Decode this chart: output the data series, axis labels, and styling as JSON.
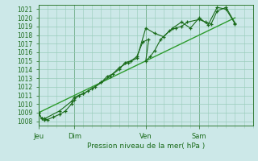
{
  "title": "Pression niveau de la mer( hPa )",
  "ylim": [
    1007.5,
    1021.5
  ],
  "yticks": [
    1008,
    1009,
    1010,
    1011,
    1012,
    1013,
    1014,
    1015,
    1016,
    1017,
    1018,
    1019,
    1020,
    1021
  ],
  "xtick_labels": [
    "Jeu",
    "Dim",
    "Ven",
    "Sam"
  ],
  "xtick_positions": [
    0,
    24,
    72,
    108
  ],
  "xlim": [
    0,
    144
  ],
  "bg_color": "#cce8e8",
  "grid_color": "#99ccbb",
  "line_color": "#1a6b1a",
  "marker_color": "#1a6b1a",
  "trend_color": "#2d9b2d",
  "series1_x": [
    0,
    2,
    4,
    6,
    10,
    14,
    18,
    22,
    24,
    27,
    30,
    33,
    38,
    42,
    46,
    50,
    54,
    58,
    62,
    66,
    70,
    74,
    72,
    75,
    78,
    82,
    88,
    92,
    96,
    100,
    108,
    112,
    116,
    120,
    126,
    132
  ],
  "series1_y": [
    1009.0,
    1008.3,
    1008.2,
    1008.2,
    1008.5,
    1008.8,
    1009.2,
    1010.0,
    1010.5,
    1011.0,
    1011.2,
    1011.5,
    1012.0,
    1012.5,
    1013.2,
    1013.5,
    1014.0,
    1014.8,
    1015.0,
    1015.5,
    1017.2,
    1017.5,
    1015.0,
    1015.5,
    1016.2,
    1017.5,
    1018.5,
    1018.8,
    1019.0,
    1019.5,
    1019.8,
    1019.5,
    1019.3,
    1020.8,
    1021.2,
    1019.4
  ],
  "series2_x": [
    0,
    2,
    4,
    14,
    22,
    24,
    30,
    36,
    42,
    48,
    54,
    60,
    66,
    72,
    78,
    84,
    90,
    96,
    102,
    108,
    114,
    120,
    126,
    132
  ],
  "series2_y": [
    1009.0,
    1008.3,
    1008.3,
    1009.2,
    1010.3,
    1010.8,
    1011.2,
    1011.8,
    1012.5,
    1013.2,
    1014.2,
    1014.8,
    1015.3,
    1018.8,
    1018.2,
    1017.8,
    1018.8,
    1019.5,
    1018.8,
    1020.0,
    1019.2,
    1021.2,
    1021.0,
    1019.3
  ],
  "trend_x": [
    0,
    132
  ],
  "trend_y": [
    1009.0,
    1020.0
  ],
  "vline_positions": [
    0,
    24,
    72,
    108
  ],
  "figsize": [
    3.2,
    2.0
  ],
  "dpi": 100
}
